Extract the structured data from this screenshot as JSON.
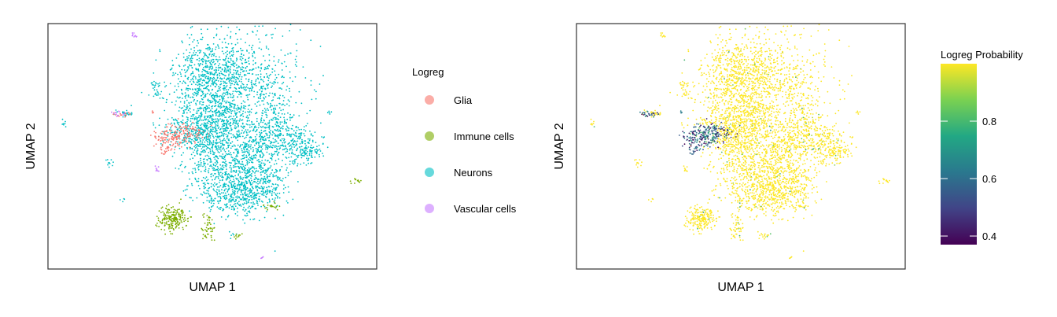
{
  "chart_data": [
    {
      "type": "scatter",
      "title": "",
      "xlabel": "UMAP 1",
      "ylabel": "UMAP 2",
      "grid": false,
      "legend": {
        "title": "Logreg",
        "position": "right",
        "entries": [
          {
            "name": "Glia",
            "color": "#F8766D"
          },
          {
            "name": "Immune cells",
            "color": "#7CAE00"
          },
          {
            "name": "Neurons",
            "color": "#00BFC4"
          },
          {
            "name": "Vascular cells",
            "color": "#C77CFF"
          }
        ]
      },
      "series": [
        {
          "name": "Neurons",
          "color": "#00BFC4"
        },
        {
          "name": "Glia",
          "color": "#F8766D"
        },
        {
          "name": "Immune cells",
          "color": "#7CAE00"
        },
        {
          "name": "Vascular cells",
          "color": "#C77CFF"
        }
      ]
    },
    {
      "type": "scatter",
      "title": "",
      "xlabel": "UMAP 1",
      "ylabel": "UMAP 2",
      "grid": false,
      "colorbar": {
        "title": "Logreg Probability",
        "position": "right",
        "range": [
          0.37,
          1.0
        ],
        "ticks": [
          "0.4",
          "0.6",
          "0.8"
        ],
        "palette": [
          "#440154",
          "#3B528B",
          "#21908C",
          "#5DC863",
          "#FDE725"
        ]
      }
    }
  ]
}
